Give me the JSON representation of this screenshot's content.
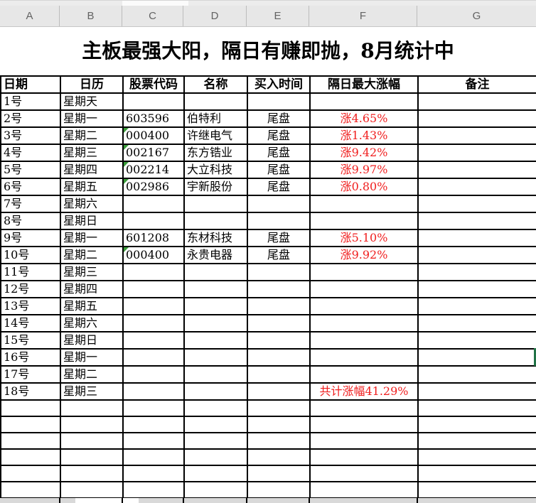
{
  "colors": {
    "gain_red": "#f01e1e",
    "flag_green": "#3b9c3b",
    "selection_green": "#217346",
    "grid_line": "#000000",
    "column_header_bg": "#e7e7e7",
    "column_header_text": "#636363"
  },
  "column_letters": [
    "A",
    "B",
    "C",
    "D",
    "E",
    "F",
    "G"
  ],
  "sheet": {
    "title": "主板最强大阳，隔日有赚即抛，8月统计中",
    "headers": [
      "日期",
      "日历",
      "股票代码",
      "名称",
      "买入时间",
      "隔日最大涨幅",
      "备注"
    ],
    "rows": [
      {
        "date": "1号",
        "day": "星期天",
        "code": "",
        "name": "",
        "time": "",
        "gain": "",
        "note": ""
      },
      {
        "date": "2号",
        "day": "星期一",
        "code": "603596",
        "name": "伯特利",
        "time": "尾盘",
        "gain": "涨4.65%",
        "note": ""
      },
      {
        "date": "3号",
        "day": "星期二",
        "code": "000400",
        "name": "许继电气",
        "time": "尾盘",
        "gain": "涨1.43%",
        "note": "",
        "code_flag": true
      },
      {
        "date": "4号",
        "day": "星期三",
        "code": "002167",
        "name": "东方锆业",
        "time": "尾盘",
        "gain": "涨9.42%",
        "note": "",
        "code_flag": true
      },
      {
        "date": "5号",
        "day": "星期四",
        "code": "002214",
        "name": "大立科技",
        "time": "尾盘",
        "gain": "涨9.97%",
        "note": "",
        "code_flag": true
      },
      {
        "date": "6号",
        "day": "星期五",
        "code": "002986",
        "name": "宇新股份",
        "time": "尾盘",
        "gain": "涨0.80%",
        "note": "",
        "code_flag": true
      },
      {
        "date": "7号",
        "day": "星期六",
        "code": "",
        "name": "",
        "time": "",
        "gain": "",
        "note": ""
      },
      {
        "date": "8号",
        "day": "星期日",
        "code": "",
        "name": "",
        "time": "",
        "gain": "",
        "note": ""
      },
      {
        "date": "9号",
        "day": "星期一",
        "code": "601208",
        "name": "东材科技",
        "time": "尾盘",
        "gain": "涨5.10%",
        "note": ""
      },
      {
        "date": "10号",
        "day": "星期二",
        "code": "000400",
        "name": "永贵电器",
        "time": "尾盘",
        "gain": "涨9.92%",
        "note": "",
        "code_flag": true
      },
      {
        "date": "11号",
        "day": "星期三",
        "code": "",
        "name": "",
        "time": "",
        "gain": "",
        "note": ""
      },
      {
        "date": "12号",
        "day": "星期四",
        "code": "",
        "name": "",
        "time": "",
        "gain": "",
        "note": ""
      },
      {
        "date": "13号",
        "day": "星期五",
        "code": "",
        "name": "",
        "time": "",
        "gain": "",
        "note": ""
      },
      {
        "date": "14号",
        "day": "星期六",
        "code": "",
        "name": "",
        "time": "",
        "gain": "",
        "note": ""
      },
      {
        "date": "15号",
        "day": "星期日",
        "code": "",
        "name": "",
        "time": "",
        "gain": "",
        "note": ""
      },
      {
        "date": "16号",
        "day": "星期一",
        "code": "",
        "name": "",
        "time": "",
        "gain": "",
        "note": "",
        "selected_edge": true
      },
      {
        "date": "17号",
        "day": "星期二",
        "code": "",
        "name": "",
        "time": "",
        "gain": "",
        "note": ""
      },
      {
        "date": "18号",
        "day": "星期三",
        "code": "",
        "name": "",
        "time": "",
        "gain": "共计涨幅41.29%",
        "note": "",
        "gain_is_total": true
      }
    ],
    "empty_row_count": 6
  }
}
